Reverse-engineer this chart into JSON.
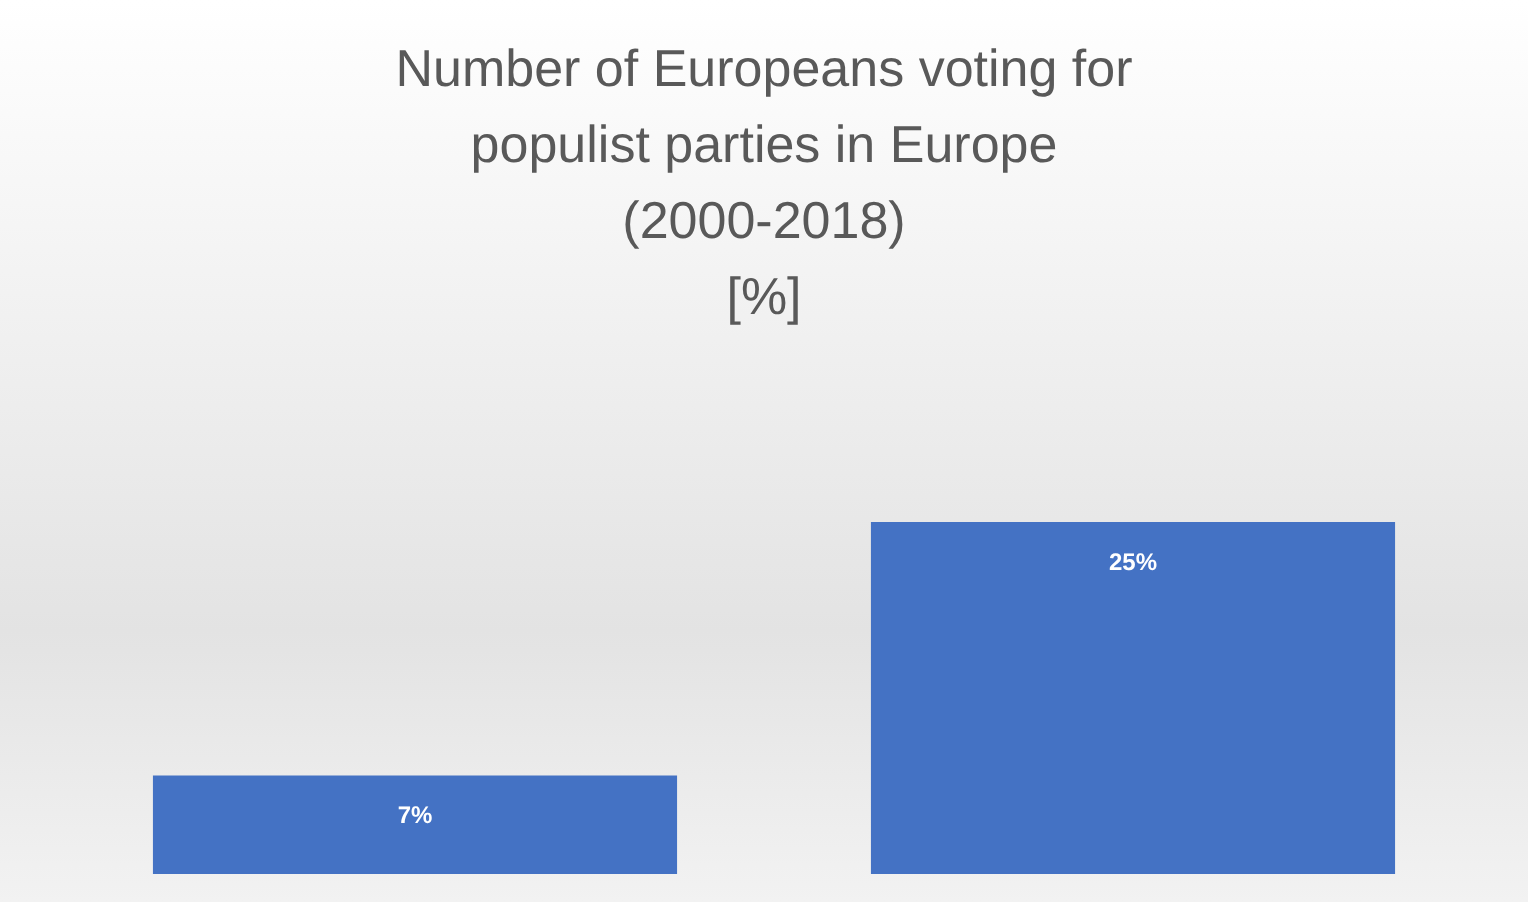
{
  "chart_data": {
    "type": "bar",
    "title": "Number of Europeans voting for\npopulist parties in Europe\n(2000-2018)\n[%]",
    "categories": [
      null,
      null
    ],
    "values": [
      7,
      25
    ],
    "value_labels": [
      "7%",
      "25%"
    ],
    "color": "#4472c4"
  }
}
